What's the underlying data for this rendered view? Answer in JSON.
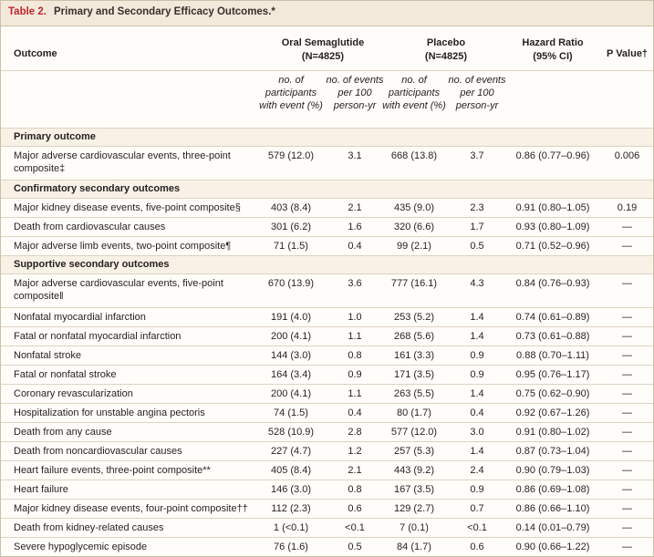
{
  "header": {
    "table_label": "Table 2.",
    "title": "Primary and Secondary Efficacy Outcomes.*"
  },
  "table": {
    "columns": [
      {
        "label": "Outcome"
      },
      {
        "label": "Oral Semaglutide",
        "sub": "(N=4825)"
      },
      {
        "label": "Placebo",
        "sub": "(N=4825)"
      },
      {
        "label": "Hazard Ratio",
        "sub": "(95% CI)"
      },
      {
        "label": "P Value†"
      }
    ],
    "subheaders": [
      "no. of participants with event (%)",
      "no. of events per 100 person-yr",
      "no. of participants with event (%)",
      "no. of events per 100 person-yr"
    ],
    "sections": [
      {
        "name": "Primary outcome",
        "rows": [
          [
            "Major adverse cardiovascular events, three-point composite‡",
            "579 (12.0)",
            "3.1",
            "668 (13.8)",
            "3.7",
            "0.86 (0.77–0.96)",
            "0.006"
          ]
        ]
      },
      {
        "name": "Confirmatory secondary outcomes",
        "rows": [
          [
            "Major kidney disease events, five-point composite§",
            "403 (8.4)",
            "2.1",
            "435 (9.0)",
            "2.3",
            "0.91 (0.80–1.05)",
            "0.19"
          ],
          [
            "Death from cardiovascular causes",
            "301 (6.2)",
            "1.6",
            "320 (6.6)",
            "1.7",
            "0.93 (0.80–1.09)",
            "—"
          ],
          [
            "Major adverse limb events, two-point composite¶",
            "71 (1.5)",
            "0.4",
            "99 (2.1)",
            "0.5",
            "0.71 (0.52–0.96)",
            "—"
          ]
        ]
      },
      {
        "name": "Supportive secondary outcomes",
        "rows": [
          [
            "Major adverse cardiovascular events, five-point composite‖",
            "670 (13.9)",
            "3.6",
            "777 (16.1)",
            "4.3",
            "0.84 (0.76–0.93)",
            "—"
          ],
          [
            "Nonfatal myocardial infarction",
            "191 (4.0)",
            "1.0",
            "253 (5.2)",
            "1.4",
            "0.74 (0.61–0.89)",
            "—"
          ],
          [
            "Fatal or nonfatal myocardial infarction",
            "200 (4.1)",
            "1.1",
            "268 (5.6)",
            "1.4",
            "0.73 (0.61–0.88)",
            "—"
          ],
          [
            "Nonfatal stroke",
            "144 (3.0)",
            "0.8",
            "161 (3.3)",
            "0.9",
            "0.88 (0.70–1.11)",
            "—"
          ],
          [
            "Fatal or nonfatal stroke",
            "164 (3.4)",
            "0.9",
            "171 (3.5)",
            "0.9",
            "0.95 (0.76–1.17)",
            "—"
          ],
          [
            "Coronary revascularization",
            "200 (4.1)",
            "1.1",
            "263 (5.5)",
            "1.4",
            "0.75 (0.62–0.90)",
            "—"
          ],
          [
            "Hospitalization for unstable angina pectoris",
            "74 (1.5)",
            "0.4",
            "80 (1.7)",
            "0.4",
            "0.92 (0.67–1.26)",
            "—"
          ],
          [
            "Death from any cause",
            "528 (10.9)",
            "2.8",
            "577 (12.0)",
            "3.0",
            "0.91 (0.80–1.02)",
            "—"
          ],
          [
            "Death from noncardiovascular causes",
            "227 (4.7)",
            "1.2",
            "257 (5.3)",
            "1.4",
            "0.87 (0.73–1.04)",
            "—"
          ],
          [
            "Heart failure events, three-point composite**",
            "405 (8.4)",
            "2.1",
            "443 (9.2)",
            "2.4",
            "0.90 (0.79–1.03)",
            "—"
          ],
          [
            "Heart failure",
            "146 (3.0)",
            "0.8",
            "167 (3.5)",
            "0.9",
            "0.86 (0.69–1.08)",
            "—"
          ],
          [
            "Major kidney disease events, four-point composite††",
            "112 (2.3)",
            "0.6",
            "129 (2.7)",
            "0.7",
            "0.86 (0.66–1.10)",
            "—"
          ],
          [
            "Death from kidney-related causes",
            "1 (<0.1)",
            "<0.1",
            "7 (0.1)",
            "<0.1",
            "0.14 (0.01–0.79)",
            "—"
          ],
          [
            "Severe hypoglycemic episode",
            "76 (1.6)",
            "0.5",
            "84 (1.7)",
            "0.6",
            "0.90 (0.66–1.22)",
            "—"
          ]
        ]
      }
    ]
  }
}
